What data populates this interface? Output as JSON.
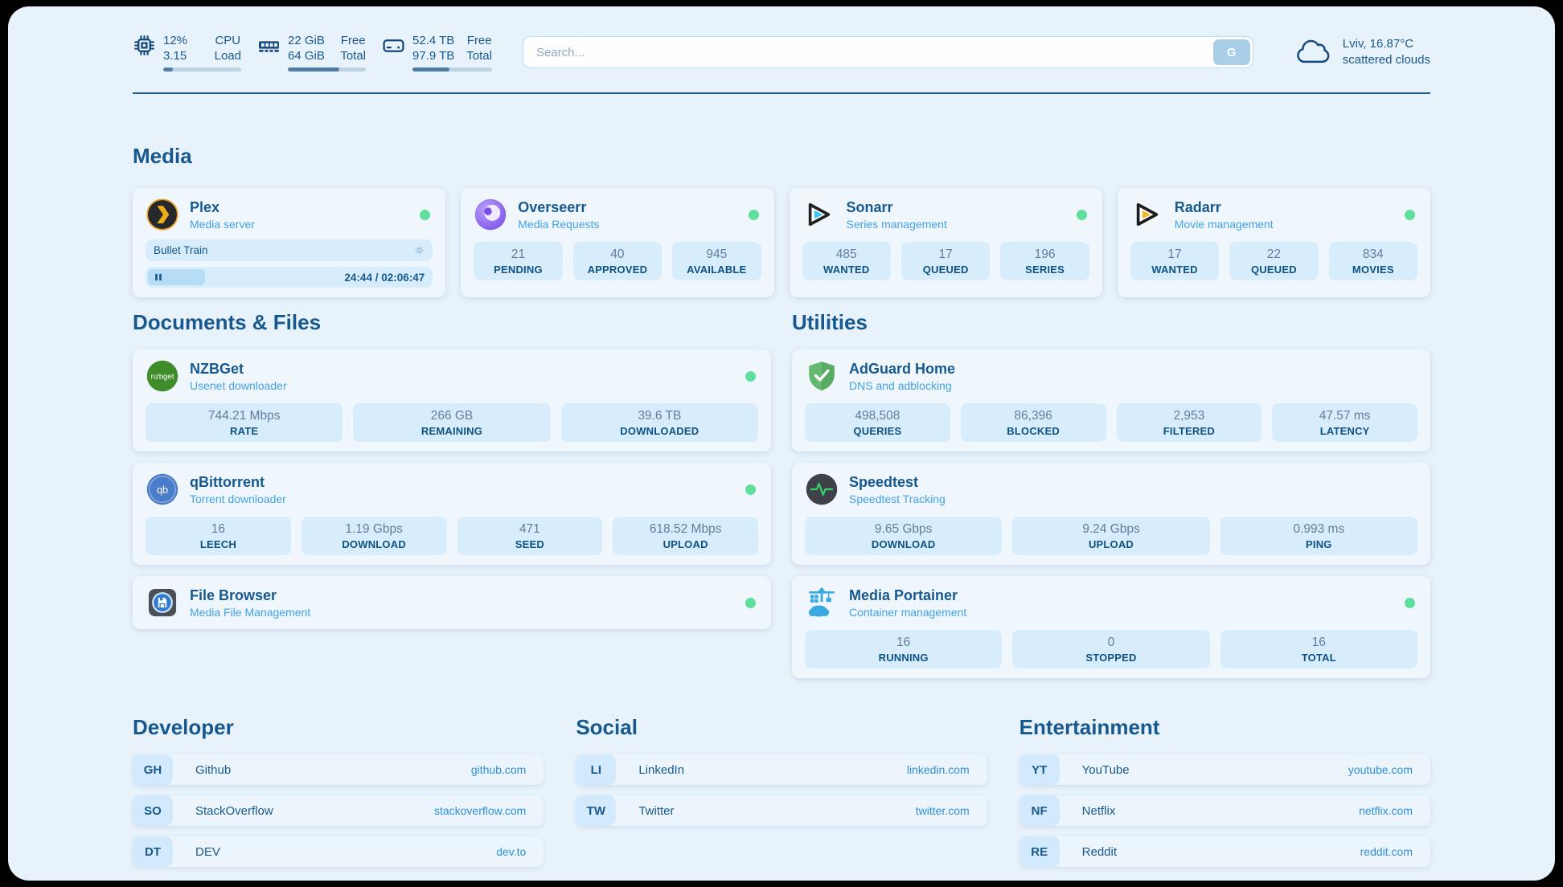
{
  "colors": {
    "accent_navy": "#17598e",
    "subtitle_blue": "#43a1e4",
    "status_green": "#5fdf9e",
    "link_blue": "#2e8fd8",
    "meter_fill": "#507da3"
  },
  "topbar": {
    "cpu": {
      "percent": "12%",
      "load": "3.15",
      "label_top": "CPU",
      "label_bottom": "Load",
      "progress": 12
    },
    "ram": {
      "free": "22 GiB",
      "total": "64 GiB",
      "label_top": "Free",
      "label_bottom": "Total",
      "progress": 66
    },
    "disk": {
      "free": "52.4 TB",
      "total": "97.9 TB",
      "label_top": "Free",
      "label_bottom": "Total",
      "progress": 46
    },
    "search": {
      "placeholder": "Search...",
      "button_label": "G"
    },
    "weather": {
      "location": "Lviv, 16.87°C",
      "condition": "scattered clouds"
    }
  },
  "sections": {
    "media": {
      "title": "Media",
      "apps": [
        {
          "name": "Plex",
          "desc": "Media server",
          "icon": "plex-icon",
          "online": true,
          "now_playing": {
            "title": "Bullet Train",
            "time_display": "24:44 / 02:06:47",
            "progress": 20
          }
        },
        {
          "name": "Overseerr",
          "desc": "Media Requests",
          "icon": "overseerr-icon",
          "online": true,
          "stats": [
            {
              "value": "21",
              "label": "PENDING"
            },
            {
              "value": "40",
              "label": "APPROVED"
            },
            {
              "value": "945",
              "label": "AVAILABLE"
            }
          ]
        },
        {
          "name": "Sonarr",
          "desc": "Series management",
          "icon": "sonarr-icon",
          "online": true,
          "stats": [
            {
              "value": "485",
              "label": "WANTED"
            },
            {
              "value": "17",
              "label": "QUEUED"
            },
            {
              "value": "196",
              "label": "SERIES"
            }
          ]
        },
        {
          "name": "Radarr",
          "desc": "Movie management",
          "icon": "radarr-icon",
          "online": true,
          "stats": [
            {
              "value": "17",
              "label": "WANTED"
            },
            {
              "value": "22",
              "label": "QUEUED"
            },
            {
              "value": "834",
              "label": "MOVIES"
            }
          ]
        }
      ]
    },
    "documents": {
      "title": "Documents & Files",
      "apps": [
        {
          "name": "NZBGet",
          "desc": "Usenet downloader",
          "icon": "nzbget-icon",
          "icon_text": "nzbget",
          "online": true,
          "stats": [
            {
              "value": "744.21 Mbps",
              "label": "RATE"
            },
            {
              "value": "266 GB",
              "label": "REMAINING"
            },
            {
              "value": "39.6 TB",
              "label": "DOWNLOADED"
            }
          ]
        },
        {
          "name": "qBittorrent",
          "desc": "Torrent downloader",
          "icon": "qbittorrent-icon",
          "icon_text": "qb",
          "online": true,
          "stats": [
            {
              "value": "16",
              "label": "LEECH"
            },
            {
              "value": "1.19 Gbps",
              "label": "DOWNLOAD"
            },
            {
              "value": "471",
              "label": "SEED"
            },
            {
              "value": "618.52 Mbps",
              "label": "UPLOAD"
            }
          ]
        },
        {
          "name": "File Browser",
          "desc": "Media File Management",
          "icon": "filebrowser-icon",
          "online": true,
          "stats": []
        }
      ]
    },
    "utilities": {
      "title": "Utilities",
      "apps": [
        {
          "name": "AdGuard Home",
          "desc": "DNS and adblocking",
          "icon": "adguard-icon",
          "online": false,
          "stats": [
            {
              "value": "498,508",
              "label": "QUERIES"
            },
            {
              "value": "86,396",
              "label": "BLOCKED"
            },
            {
              "value": "2,953",
              "label": "FILTERED"
            },
            {
              "value": "47.57 ms",
              "label": "LATENCY"
            }
          ]
        },
        {
          "name": "Speedtest",
          "desc": "Speedtest Tracking",
          "icon": "speedtest-icon",
          "online": false,
          "stats": [
            {
              "value": "9.65 Gbps",
              "label": "DOWNLOAD"
            },
            {
              "value": "9.24 Gbps",
              "label": "UPLOAD"
            },
            {
              "value": "0.993 ms",
              "label": "PING"
            }
          ]
        },
        {
          "name": "Media Portainer",
          "desc": "Container management",
          "icon": "portainer-icon",
          "online": true,
          "stats": [
            {
              "value": "16",
              "label": "RUNNING"
            },
            {
              "value": "0",
              "label": "STOPPED"
            },
            {
              "value": "16",
              "label": "TOTAL"
            }
          ]
        }
      ]
    },
    "developer": {
      "title": "Developer",
      "links": [
        {
          "abbr": "GH",
          "name": "Github",
          "url": "github.com"
        },
        {
          "abbr": "SO",
          "name": "StackOverflow",
          "url": "stackoverflow.com"
        },
        {
          "abbr": "DT",
          "name": "DEV",
          "url": "dev.to"
        }
      ]
    },
    "social": {
      "title": "Social",
      "links": [
        {
          "abbr": "LI",
          "name": "LinkedIn",
          "url": "linkedin.com"
        },
        {
          "abbr": "TW",
          "name": "Twitter",
          "url": "twitter.com"
        }
      ]
    },
    "entertainment": {
      "title": "Entertainment",
      "links": [
        {
          "abbr": "YT",
          "name": "YouTube",
          "url": "youtube.com"
        },
        {
          "abbr": "NF",
          "name": "Netflix",
          "url": "netflix.com"
        },
        {
          "abbr": "RE",
          "name": "Reddit",
          "url": "reddit.com"
        }
      ]
    }
  }
}
